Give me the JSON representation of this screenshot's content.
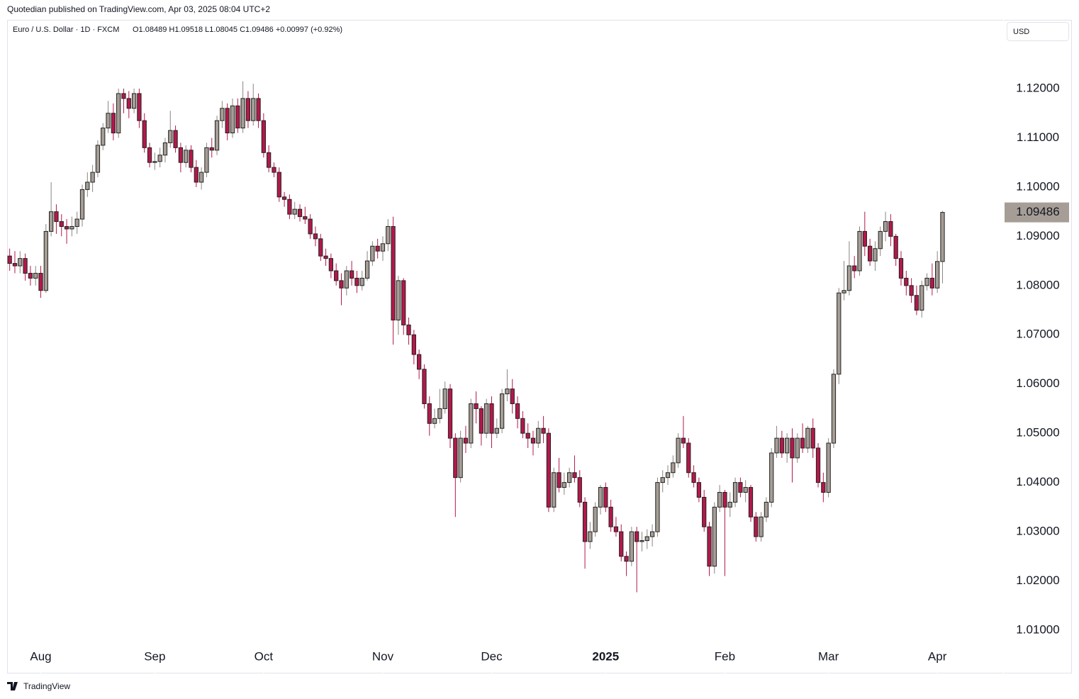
{
  "chart_data": {
    "type": "candlestick",
    "byline": "Quotedian published on TradingView.com, Apr 03, 2025 08:04 UTC+2",
    "title": "Euro / U.S. Dollar · 1D · FXCM",
    "ohlc_text": "O1.08489  H1.09518  L1.08045  C1.09486  +0.00997 (+0.92%)",
    "currency": "USD",
    "brand": "TradingView",
    "up_color": "#a69e96",
    "down_color": "#b3184a",
    "border_color": "#222222",
    "last_price": 1.09486,
    "xlim": [
      -0.5,
      191.7
    ],
    "ylim": [
      1.00121,
      1.13397
    ],
    "xticks": [
      {
        "value": 6,
        "label": "Aug"
      },
      {
        "value": 28,
        "label": "Sep"
      },
      {
        "value": 49,
        "label": "Oct"
      },
      {
        "value": 72,
        "label": "Nov"
      },
      {
        "value": 93,
        "label": "Dec"
      },
      {
        "value": 115,
        "label": "2025"
      },
      {
        "value": 138,
        "label": "Feb"
      },
      {
        "value": 158,
        "label": "Mar"
      },
      {
        "value": 179,
        "label": "Apr"
      }
    ],
    "yticks": [
      {
        "value": 1.01,
        "label": "1.01000"
      },
      {
        "value": 1.02,
        "label": "1.02000"
      },
      {
        "value": 1.03,
        "label": "1.03000"
      },
      {
        "value": 1.04,
        "label": "1.04000"
      },
      {
        "value": 1.05,
        "label": "1.05000"
      },
      {
        "value": 1.06,
        "label": "1.06000"
      },
      {
        "value": 1.07,
        "label": "1.07000"
      },
      {
        "value": 1.08,
        "label": "1.08000"
      },
      {
        "value": 1.09,
        "label": "1.09000"
      },
      {
        "value": 1.1,
        "label": "1.10000"
      },
      {
        "value": 1.11,
        "label": "1.11000"
      },
      {
        "value": 1.12,
        "label": "1.12000"
      }
    ],
    "candles": [
      [
        1.086,
        1.0875,
        1.083,
        1.0845
      ],
      [
        1.0845,
        1.087,
        1.0825,
        1.084
      ],
      [
        1.084,
        1.087,
        1.0825,
        1.0855
      ],
      [
        1.0855,
        1.0865,
        1.081,
        1.0825
      ],
      [
        1.0825,
        1.084,
        1.08,
        1.0815
      ],
      [
        1.0815,
        1.084,
        1.08,
        1.0825
      ],
      [
        1.0825,
        1.084,
        1.0775,
        1.079
      ],
      [
        1.079,
        1.0925,
        1.0785,
        1.091
      ],
      [
        1.091,
        1.101,
        1.09,
        1.095
      ],
      [
        1.095,
        1.0965,
        1.0905,
        1.093
      ],
      [
        1.093,
        1.0945,
        1.09,
        1.092
      ],
      [
        1.092,
        1.0935,
        1.0885,
        1.0915
      ],
      [
        1.0915,
        1.094,
        1.09,
        1.092
      ],
      [
        1.092,
        1.095,
        1.0905,
        1.0935
      ],
      [
        1.0935,
        1.1005,
        1.092,
        1.0995
      ],
      [
        1.0995,
        1.103,
        1.098,
        1.101
      ],
      [
        1.101,
        1.1045,
        1.099,
        1.103
      ],
      [
        1.103,
        1.1095,
        1.102,
        1.1085
      ],
      [
        1.1085,
        1.113,
        1.1075,
        1.112
      ],
      [
        1.112,
        1.1175,
        1.111,
        1.115
      ],
      [
        1.115,
        1.117,
        1.1095,
        1.111
      ],
      [
        1.111,
        1.12,
        1.11,
        1.119
      ],
      [
        1.119,
        1.12,
        1.115,
        1.118
      ],
      [
        1.118,
        1.1195,
        1.114,
        1.116
      ],
      [
        1.116,
        1.12,
        1.115,
        1.119
      ],
      [
        1.119,
        1.12,
        1.112,
        1.1135
      ],
      [
        1.1135,
        1.115,
        1.107,
        1.108
      ],
      [
        1.108,
        1.109,
        1.104,
        1.105
      ],
      [
        1.105,
        1.107,
        1.1035,
        1.1052
      ],
      [
        1.1052,
        1.108,
        1.104,
        1.1065
      ],
      [
        1.1065,
        1.11,
        1.105,
        1.109
      ],
      [
        1.109,
        1.1155,
        1.108,
        1.1115
      ],
      [
        1.1115,
        1.1125,
        1.107,
        1.108
      ],
      [
        1.108,
        1.109,
        1.103,
        1.105
      ],
      [
        1.105,
        1.1085,
        1.104,
        1.1075
      ],
      [
        1.1075,
        1.1085,
        1.103,
        1.104
      ],
      [
        1.104,
        1.1055,
        1.1,
        1.101
      ],
      [
        1.101,
        1.104,
        1.0995,
        1.103
      ],
      [
        1.103,
        1.109,
        1.102,
        1.108
      ],
      [
        1.108,
        1.11,
        1.106,
        1.1075
      ],
      [
        1.1075,
        1.1145,
        1.1065,
        1.1135
      ],
      [
        1.1135,
        1.1175,
        1.112,
        1.116
      ],
      [
        1.116,
        1.117,
        1.1095,
        1.111
      ],
      [
        1.111,
        1.118,
        1.11,
        1.1165
      ],
      [
        1.1165,
        1.118,
        1.111,
        1.112
      ],
      [
        1.112,
        1.1215,
        1.111,
        1.118
      ],
      [
        1.118,
        1.1195,
        1.112,
        1.1135
      ],
      [
        1.1135,
        1.121,
        1.1125,
        1.118
      ],
      [
        1.118,
        1.119,
        1.112,
        1.1135
      ],
      [
        1.1135,
        1.115,
        1.106,
        1.107
      ],
      [
        1.107,
        1.1085,
        1.103,
        1.104
      ],
      [
        1.104,
        1.105,
        1.102,
        1.103
      ],
      [
        1.103,
        1.104,
        1.097,
        1.098
      ],
      [
        1.098,
        1.099,
        1.096,
        1.0975
      ],
      [
        1.0975,
        1.0985,
        1.0935,
        1.0945
      ],
      [
        1.0945,
        1.097,
        1.0935,
        1.0955
      ],
      [
        1.0955,
        1.0965,
        1.093,
        1.094
      ],
      [
        1.094,
        1.096,
        1.0925,
        1.0935
      ],
      [
        1.0935,
        1.0945,
        1.0895,
        1.0905
      ],
      [
        1.0905,
        1.092,
        1.088,
        1.0895
      ],
      [
        1.0895,
        1.0905,
        1.085,
        1.086
      ],
      [
        1.086,
        1.0875,
        1.084,
        1.0855
      ],
      [
        1.0855,
        1.0865,
        1.0815,
        1.083
      ],
      [
        1.083,
        1.0845,
        1.08,
        1.081
      ],
      [
        1.081,
        1.0825,
        1.076,
        1.0795
      ],
      [
        1.0795,
        1.084,
        1.078,
        1.083
      ],
      [
        1.083,
        1.085,
        1.08,
        1.0815
      ],
      [
        1.0815,
        1.083,
        1.0785,
        1.08
      ],
      [
        1.08,
        1.083,
        1.079,
        1.0815
      ],
      [
        1.0815,
        1.087,
        1.081,
        1.085
      ],
      [
        1.085,
        1.089,
        1.084,
        1.088
      ],
      [
        1.088,
        1.0895,
        1.0855,
        1.087
      ],
      [
        1.087,
        1.09,
        1.085,
        1.0885
      ],
      [
        1.0885,
        1.0935,
        1.087,
        1.092
      ],
      [
        1.092,
        1.094,
        1.068,
        1.073
      ],
      [
        1.073,
        1.082,
        1.07,
        1.081
      ],
      [
        1.081,
        1.0815,
        1.07,
        1.072
      ],
      [
        1.072,
        1.0735,
        1.068,
        1.07
      ],
      [
        1.07,
        1.071,
        1.064,
        1.066
      ],
      [
        1.066,
        1.067,
        1.061,
        1.063
      ],
      [
        1.063,
        1.064,
        1.055,
        1.056
      ],
      [
        1.056,
        1.0575,
        1.0495,
        1.052
      ],
      [
        1.052,
        1.055,
        1.051,
        1.053
      ],
      [
        1.053,
        1.059,
        1.052,
        1.055
      ],
      [
        1.055,
        1.0605,
        1.054,
        1.059
      ],
      [
        1.059,
        1.06,
        1.047,
        1.049
      ],
      [
        1.049,
        1.05,
        1.033,
        1.041
      ],
      [
        1.041,
        1.0505,
        1.04,
        1.049
      ],
      [
        1.049,
        1.0515,
        1.046,
        1.048
      ],
      [
        1.048,
        1.057,
        1.047,
        1.056
      ],
      [
        1.056,
        1.0585,
        1.052,
        1.055
      ],
      [
        1.055,
        1.0555,
        1.0475,
        1.05
      ],
      [
        1.05,
        1.057,
        1.049,
        1.056
      ],
      [
        1.056,
        1.0575,
        1.047,
        1.05
      ],
      [
        1.05,
        1.053,
        1.049,
        1.051
      ],
      [
        1.051,
        1.059,
        1.05,
        1.058
      ],
      [
        1.058,
        1.063,
        1.0565,
        1.059
      ],
      [
        1.059,
        1.061,
        1.054,
        1.056
      ],
      [
        1.056,
        1.0575,
        1.051,
        1.053
      ],
      [
        1.053,
        1.0545,
        1.049,
        1.05
      ],
      [
        1.05,
        1.052,
        1.047,
        1.049
      ],
      [
        1.049,
        1.0505,
        1.0455,
        1.048
      ],
      [
        1.048,
        1.0525,
        1.047,
        1.051
      ],
      [
        1.051,
        1.0535,
        1.048,
        1.05
      ],
      [
        1.05,
        1.051,
        1.034,
        1.035
      ],
      [
        1.035,
        1.043,
        1.034,
        1.042
      ],
      [
        1.042,
        1.045,
        1.038,
        1.039
      ],
      [
        1.039,
        1.042,
        1.0375,
        1.04
      ],
      [
        1.04,
        1.043,
        1.039,
        1.042
      ],
      [
        1.042,
        1.0455,
        1.04,
        1.041
      ],
      [
        1.041,
        1.0425,
        1.035,
        1.036
      ],
      [
        1.036,
        1.037,
        1.0225,
        1.028
      ],
      [
        1.028,
        1.032,
        1.0265,
        1.03
      ],
      [
        1.03,
        1.036,
        1.029,
        1.035
      ],
      [
        1.035,
        1.0395,
        1.0335,
        1.039
      ],
      [
        1.039,
        1.04,
        1.034,
        1.035
      ],
      [
        1.035,
        1.0365,
        1.03,
        1.031
      ],
      [
        1.031,
        1.033,
        1.029,
        1.03
      ],
      [
        1.03,
        1.0315,
        1.024,
        1.025
      ],
      [
        1.025,
        1.026,
        1.021,
        1.024
      ],
      [
        1.024,
        1.031,
        1.023,
        1.03
      ],
      [
        1.03,
        1.031,
        1.0177,
        1.028
      ],
      [
        1.028,
        1.03,
        1.026,
        1.0282
      ],
      [
        1.0282,
        1.0305,
        1.0265,
        1.029
      ],
      [
        1.029,
        1.0315,
        1.027,
        1.03
      ],
      [
        1.03,
        1.041,
        1.029,
        1.04
      ],
      [
        1.04,
        1.0425,
        1.038,
        1.041
      ],
      [
        1.041,
        1.0435,
        1.0395,
        1.042
      ],
      [
        1.042,
        1.0455,
        1.041,
        1.044
      ],
      [
        1.044,
        1.05,
        1.043,
        1.049
      ],
      [
        1.049,
        1.0535,
        1.047,
        1.048
      ],
      [
        1.048,
        1.049,
        1.041,
        1.042
      ],
      [
        1.042,
        1.0435,
        1.039,
        1.04
      ],
      [
        1.04,
        1.041,
        1.036,
        1.037
      ],
      [
        1.037,
        1.0385,
        1.03,
        1.031
      ],
      [
        1.031,
        1.032,
        1.021,
        1.023
      ],
      [
        1.023,
        1.036,
        1.0215,
        1.035
      ],
      [
        1.035,
        1.0395,
        1.034,
        1.038
      ],
      [
        1.038,
        1.0385,
        1.021,
        1.035
      ],
      [
        1.035,
        1.038,
        1.033,
        1.036
      ],
      [
        1.036,
        1.041,
        1.035,
        1.04
      ],
      [
        1.04,
        1.041,
        1.037,
        1.038
      ],
      [
        1.038,
        1.0405,
        1.036,
        1.039
      ],
      [
        1.039,
        1.0395,
        1.032,
        1.033
      ],
      [
        1.033,
        1.034,
        1.028,
        1.029
      ],
      [
        1.029,
        1.034,
        1.028,
        1.033
      ],
      [
        1.033,
        1.037,
        1.032,
        1.036
      ],
      [
        1.036,
        1.047,
        1.035,
        1.046
      ],
      [
        1.046,
        1.0515,
        1.045,
        1.049
      ],
      [
        1.049,
        1.0505,
        1.045,
        1.046
      ],
      [
        1.046,
        1.05,
        1.044,
        1.049
      ],
      [
        1.049,
        1.051,
        1.04,
        1.045
      ],
      [
        1.045,
        1.05,
        1.044,
        1.049
      ],
      [
        1.049,
        1.052,
        1.046,
        1.047
      ],
      [
        1.047,
        1.0515,
        1.046,
        1.051
      ],
      [
        1.051,
        1.053,
        1.045,
        1.047
      ],
      [
        1.047,
        1.048,
        1.039,
        1.04
      ],
      [
        1.04,
        1.042,
        1.036,
        1.038
      ],
      [
        1.038,
        1.049,
        1.037,
        1.048
      ],
      [
        1.048,
        1.063,
        1.047,
        1.062
      ],
      [
        1.062,
        1.0795,
        1.06,
        1.0785
      ],
      [
        1.0785,
        1.085,
        1.077,
        1.079
      ],
      [
        1.079,
        1.089,
        1.078,
        1.084
      ],
      [
        1.084,
        1.086,
        1.0815,
        1.083
      ],
      [
        1.083,
        1.092,
        1.082,
        1.091
      ],
      [
        1.091,
        1.095,
        1.086,
        1.088
      ],
      [
        1.088,
        1.0895,
        1.084,
        1.085
      ],
      [
        1.085,
        1.089,
        1.083,
        1.0875
      ],
      [
        1.0875,
        1.092,
        1.086,
        1.091
      ],
      [
        1.091,
        1.095,
        1.089,
        1.093
      ],
      [
        1.093,
        1.0945,
        1.088,
        1.09
      ],
      [
        1.09,
        1.0905,
        1.084,
        1.0855
      ],
      [
        1.0855,
        1.087,
        1.08,
        1.0815
      ],
      [
        1.0815,
        1.083,
        1.078,
        1.08
      ],
      [
        1.08,
        1.0815,
        1.0765,
        1.078
      ],
      [
        1.078,
        1.08,
        1.074,
        1.075
      ],
      [
        1.075,
        1.081,
        1.0735,
        1.08
      ],
      [
        1.08,
        1.0825,
        1.079,
        1.0815
      ],
      [
        1.0815,
        1.0845,
        1.078,
        1.0795
      ],
      [
        1.0795,
        1.087,
        1.0785,
        1.08489
      ],
      [
        1.08489,
        1.09518,
        1.08045,
        1.09486
      ]
    ]
  }
}
